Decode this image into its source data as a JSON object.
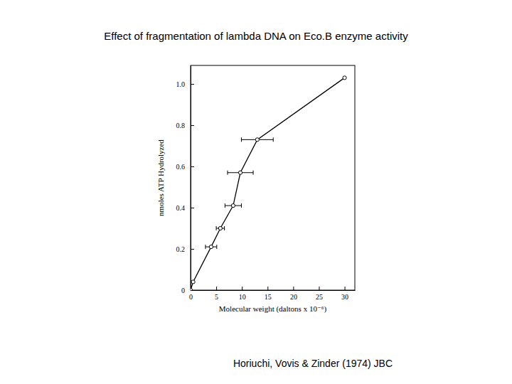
{
  "chart_data": {
    "type": "line",
    "title": "Effect of fragmentation of lambda DNA on Eco.B enzyme activity",
    "x_label": "Molecular weight (daltons x 10⁻⁶)",
    "y_label": "nmoles ATP Hydrolyzed",
    "annotations": [
      "Horiuchi, Vovis & Zinder (1974) JBC"
    ],
    "xlim": [
      0,
      32
    ],
    "ylim": [
      0,
      1.09
    ],
    "xticks": [
      0,
      5,
      10,
      15,
      20,
      25,
      30
    ],
    "yticks": [
      0,
      0.2,
      0.4,
      0.6,
      0.8,
      {
        "value": 1,
        "label": "1.0"
      }
    ],
    "grid": false,
    "series": [
      {
        "color": "#000000",
        "marker": "circle",
        "line_style": "solid",
        "x": [
          0,
          0.5,
          4.0,
          5.8,
          8.3,
          9.7,
          13.0,
          30.0
        ],
        "values": [
          0,
          0.04,
          0.21,
          0.3,
          0.41,
          0.57,
          0.73,
          1.03
        ],
        "xerr": [
          null,
          null,
          1.1,
          0.8,
          1.6,
          2.5,
          3.1,
          null
        ]
      }
    ]
  }
}
